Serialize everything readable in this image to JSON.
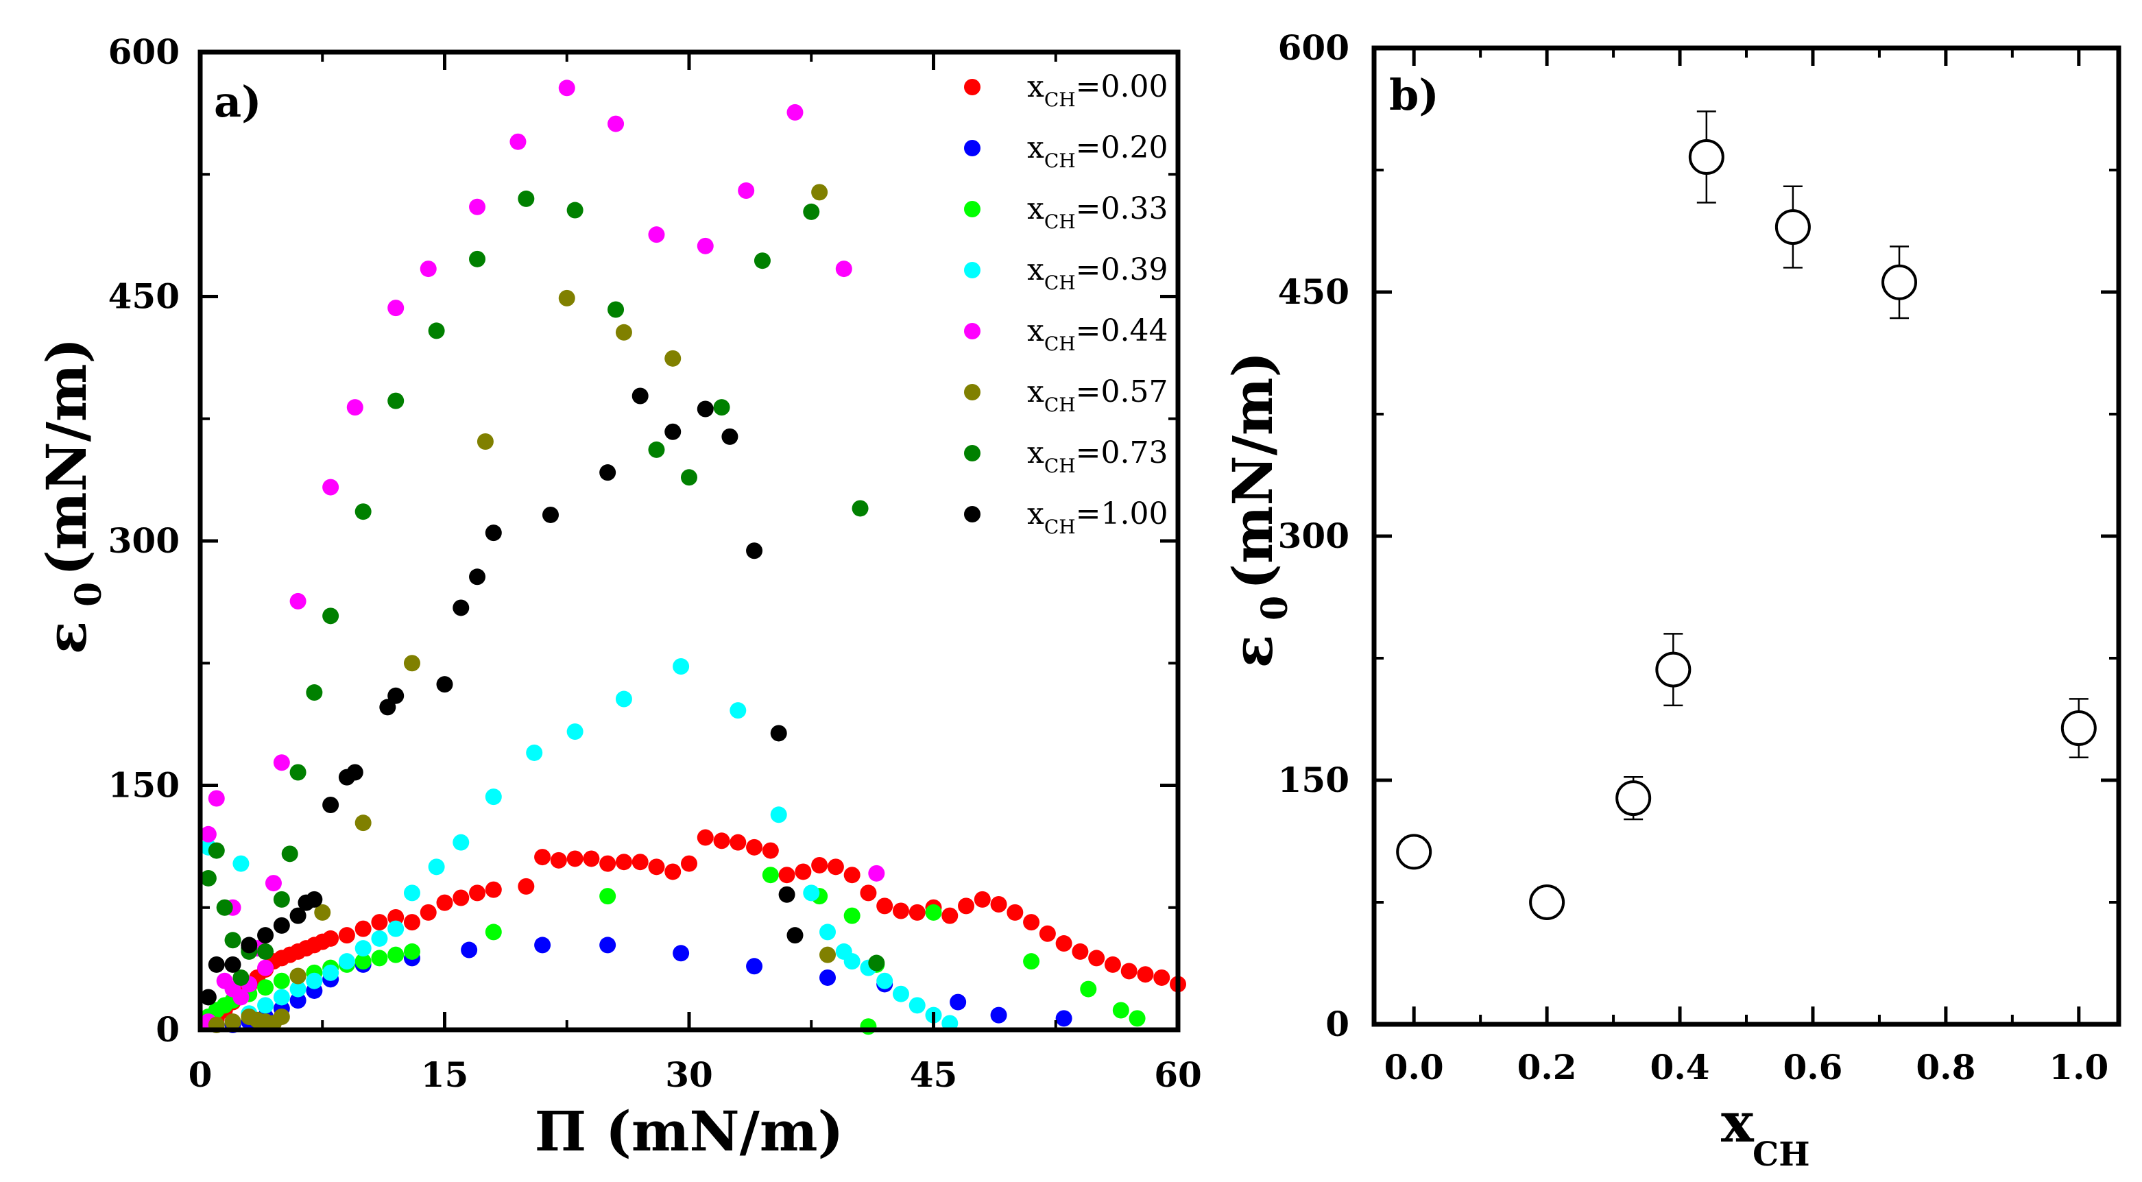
{
  "chart_data": [
    {
      "type": "scatter",
      "panel_label": "a)",
      "xlabel": "Π (mN/m)",
      "ylabel": "ε",
      "ylabel_sub": "0",
      "ylabel_units": "(mN/m)",
      "xlim": [
        0,
        60
      ],
      "ylim": [
        0,
        600
      ],
      "xticks": [
        "0",
        "15",
        "30",
        "45",
        "60"
      ],
      "yticks": [
        "0",
        "150",
        "300",
        "450",
        "600"
      ],
      "legend_position": "top-right",
      "series": [
        {
          "name": "0.00",
          "color": "#ff0000",
          "points": [
            [
              0.5,
              4
            ],
            [
              1,
              7
            ],
            [
              1.5,
              12
            ],
            [
              2,
              17
            ],
            [
              2.5,
              22
            ],
            [
              3,
              27
            ],
            [
              3.5,
              32
            ],
            [
              4,
              37
            ],
            [
              4.5,
              42
            ],
            [
              5,
              44
            ],
            [
              5.5,
              46
            ],
            [
              6,
              48
            ],
            [
              6.5,
              50
            ],
            [
              7,
              52
            ],
            [
              7.5,
              54
            ],
            [
              8,
              56
            ],
            [
              9,
              58
            ],
            [
              10,
              62
            ],
            [
              11,
              66
            ],
            [
              12,
              69
            ],
            [
              13,
              66
            ],
            [
              14,
              72
            ],
            [
              15,
              78
            ],
            [
              16,
              81
            ],
            [
              17,
              84
            ],
            [
              18,
              86
            ],
            [
              20,
              88
            ],
            [
              21,
              106
            ],
            [
              22,
              104
            ],
            [
              23,
              105
            ],
            [
              24,
              105
            ],
            [
              25,
              102
            ],
            [
              26,
              103
            ],
            [
              27,
              103
            ],
            [
              28,
              100
            ],
            [
              29,
              97
            ],
            [
              30,
              102
            ],
            [
              31,
              118
            ],
            [
              32,
              116
            ],
            [
              33,
              115
            ],
            [
              34,
              112
            ],
            [
              35,
              110
            ],
            [
              36,
              95
            ],
            [
              37,
              97
            ],
            [
              38,
              101
            ],
            [
              39,
              100
            ],
            [
              40,
              95
            ],
            [
              41,
              84
            ],
            [
              42,
              76
            ],
            [
              43,
              73
            ],
            [
              44,
              72
            ],
            [
              45,
              75
            ],
            [
              46,
              70
            ],
            [
              47,
              76
            ],
            [
              48,
              80
            ],
            [
              49,
              77
            ],
            [
              50,
              72
            ],
            [
              51,
              66
            ],
            [
              52,
              59
            ],
            [
              53,
              53
            ],
            [
              54,
              48
            ],
            [
              55,
              44
            ],
            [
              56,
              40
            ],
            [
              57,
              36
            ],
            [
              58,
              34
            ],
            [
              59,
              32
            ],
            [
              60,
              28
            ]
          ]
        },
        {
          "name": "0.20",
          "color": "#0000ff",
          "points": [
            [
              2,
              3
            ],
            [
              3,
              5
            ],
            [
              4,
              8
            ],
            [
              5,
              13
            ],
            [
              6,
              18
            ],
            [
              7,
              24
            ],
            [
              8,
              31
            ],
            [
              10,
              40
            ],
            [
              13,
              44
            ],
            [
              16.5,
              49
            ],
            [
              21,
              52
            ],
            [
              25,
              52
            ],
            [
              29.5,
              47
            ],
            [
              34,
              39
            ],
            [
              38.5,
              32
            ],
            [
              42,
              28
            ],
            [
              46.5,
              17
            ],
            [
              49,
              9
            ],
            [
              53,
              7
            ]
          ]
        },
        {
          "name": "0.33",
          "color": "#00ff00",
          "points": [
            [
              0.5,
              8
            ],
            [
              1,
              12
            ],
            [
              1.5,
              15
            ],
            [
              2,
              18
            ],
            [
              3,
              22
            ],
            [
              4,
              26
            ],
            [
              5,
              30
            ],
            [
              6,
              33
            ],
            [
              7,
              35
            ],
            [
              8,
              38
            ],
            [
              9,
              40
            ],
            [
              10,
              42
            ],
            [
              11,
              44
            ],
            [
              12,
              46
            ],
            [
              13,
              48
            ],
            [
              18,
              60
            ],
            [
              25,
              82
            ],
            [
              35,
              95
            ],
            [
              38,
              82
            ],
            [
              40,
              70
            ],
            [
              41.5,
              40
            ],
            [
              45,
              72
            ],
            [
              51,
              42
            ],
            [
              54.5,
              25
            ],
            [
              56.5,
              12
            ],
            [
              57.5,
              7
            ],
            [
              41,
              2
            ]
          ]
        },
        {
          "name": "0.39",
          "color": "#00ffff",
          "points": [
            [
              0.5,
              112
            ],
            [
              2.5,
              102
            ],
            [
              3,
              10
            ],
            [
              4,
              15
            ],
            [
              5,
              20
            ],
            [
              6,
              25
            ],
            [
              7,
              30
            ],
            [
              8,
              35
            ],
            [
              9,
              42
            ],
            [
              10,
              50
            ],
            [
              11,
              56
            ],
            [
              12,
              62
            ],
            [
              13,
              84
            ],
            [
              14.5,
              100
            ],
            [
              16,
              115
            ],
            [
              18,
              143
            ],
            [
              20.5,
              170
            ],
            [
              23,
              183
            ],
            [
              26,
              203
            ],
            [
              29.5,
              223
            ],
            [
              33,
              196
            ],
            [
              35.5,
              132
            ],
            [
              37.5,
              84
            ],
            [
              38.5,
              60
            ],
            [
              39.5,
              48
            ],
            [
              40,
              42
            ],
            [
              41,
              38
            ],
            [
              42,
              30
            ],
            [
              43,
              22
            ],
            [
              44,
              15
            ],
            [
              45,
              9
            ],
            [
              46,
              4
            ]
          ]
        },
        {
          "name": "0.44",
          "color": "#ff00ff",
          "points": [
            [
              0.5,
              120
            ],
            [
              1,
              142
            ],
            [
              2,
              75
            ],
            [
              1.5,
              30
            ],
            [
              2,
              25
            ],
            [
              2.5,
              20
            ],
            [
              3,
              28
            ],
            [
              4,
              38
            ],
            [
              4.5,
              90
            ],
            [
              5,
              164
            ],
            [
              6,
              263
            ],
            [
              8,
              333
            ],
            [
              9.5,
              382
            ],
            [
              12,
              443
            ],
            [
              14,
              467
            ],
            [
              17,
              505
            ],
            [
              19.5,
              545
            ],
            [
              22.5,
              578
            ],
            [
              25.5,
              556
            ],
            [
              28,
              488
            ],
            [
              31,
              481
            ],
            [
              33.5,
              515
            ],
            [
              36.5,
              563
            ],
            [
              39.5,
              467
            ],
            [
              41.5,
              96
            ],
            [
              3.5,
              50
            ],
            [
              0.5,
              5
            ]
          ]
        },
        {
          "name": "0.57",
          "color": "#808000",
          "points": [
            [
              1,
              3
            ],
            [
              2,
              5
            ],
            [
              3,
              8
            ],
            [
              3.5,
              6
            ],
            [
              4,
              5
            ],
            [
              4.5,
              4
            ],
            [
              5,
              8
            ],
            [
              6,
              33
            ],
            [
              7.5,
              72
            ],
            [
              10,
              127
            ],
            [
              13,
              225
            ],
            [
              17.5,
              361
            ],
            [
              22.5,
              449
            ],
            [
              26,
              428
            ],
            [
              29,
              412
            ],
            [
              38,
              514
            ],
            [
              38.5,
              46
            ]
          ]
        },
        {
          "name": "0.73",
          "color": "#008000",
          "points": [
            [
              0.5,
              93
            ],
            [
              1,
              110
            ],
            [
              1.5,
              75
            ],
            [
              2,
              55
            ],
            [
              2.5,
              32
            ],
            [
              3,
              48
            ],
            [
              4,
              48
            ],
            [
              5,
              80
            ],
            [
              5.5,
              108
            ],
            [
              6,
              158
            ],
            [
              7,
              207
            ],
            [
              8,
              254
            ],
            [
              10,
              318
            ],
            [
              12,
              386
            ],
            [
              14.5,
              429
            ],
            [
              17,
              473
            ],
            [
              20,
              510
            ],
            [
              23,
              503
            ],
            [
              25.5,
              442
            ],
            [
              28,
              356
            ],
            [
              30,
              339
            ],
            [
              32,
              382
            ],
            [
              34.5,
              472
            ],
            [
              37.5,
              502
            ],
            [
              40.5,
              320
            ],
            [
              41.5,
              41
            ],
            [
              3,
              50
            ]
          ]
        },
        {
          "name": "1.00",
          "color": "#000000",
          "points": [
            [
              0.5,
              20
            ],
            [
              1,
              40
            ],
            [
              2,
              40
            ],
            [
              3,
              52
            ],
            [
              4,
              58
            ],
            [
              5,
              64
            ],
            [
              6,
              70
            ],
            [
              6.5,
              78
            ],
            [
              7,
              80
            ],
            [
              8,
              138
            ],
            [
              9,
              155
            ],
            [
              9.5,
              158
            ],
            [
              11.5,
              198
            ],
            [
              12,
              205
            ],
            [
              15,
              212
            ],
            [
              16,
              259
            ],
            [
              17,
              278
            ],
            [
              18,
              305
            ],
            [
              21.5,
              316
            ],
            [
              25,
              342
            ],
            [
              27,
              389
            ],
            [
              29,
              367
            ],
            [
              31,
              381
            ],
            [
              32.5,
              364
            ],
            [
              34,
              294
            ],
            [
              35.5,
              182
            ],
            [
              36,
              83
            ],
            [
              36.5,
              58
            ]
          ]
        }
      ]
    },
    {
      "type": "scatter",
      "panel_label": "b)",
      "xlabel": "x",
      "xlabel_sub": "CH",
      "ylabel": "ε",
      "ylabel_sub": "0",
      "ylabel_units": "(mN/m)",
      "xlim": [
        -0.06,
        1.06
      ],
      "ylim": [
        0,
        600
      ],
      "xticks": [
        "0.0",
        "0.2",
        "0.4",
        "0.6",
        "0.8",
        "1.0"
      ],
      "yticks": [
        "0",
        "150",
        "300",
        "450",
        "600"
      ],
      "points": [
        {
          "x": 0.0,
          "y": 106,
          "err": 9
        },
        {
          "x": 0.2,
          "y": 75,
          "err": 9
        },
        {
          "x": 0.33,
          "y": 139,
          "err": 13
        },
        {
          "x": 0.39,
          "y": 218,
          "err": 22
        },
        {
          "x": 0.44,
          "y": 533,
          "err": 28
        },
        {
          "x": 0.57,
          "y": 490,
          "err": 25
        },
        {
          "x": 0.73,
          "y": 456,
          "err": 22
        },
        {
          "x": 1.0,
          "y": 182,
          "err": 18
        }
      ]
    }
  ],
  "legend_prefix": "x",
  "legend_sub": "CH",
  "legend_eq": "="
}
